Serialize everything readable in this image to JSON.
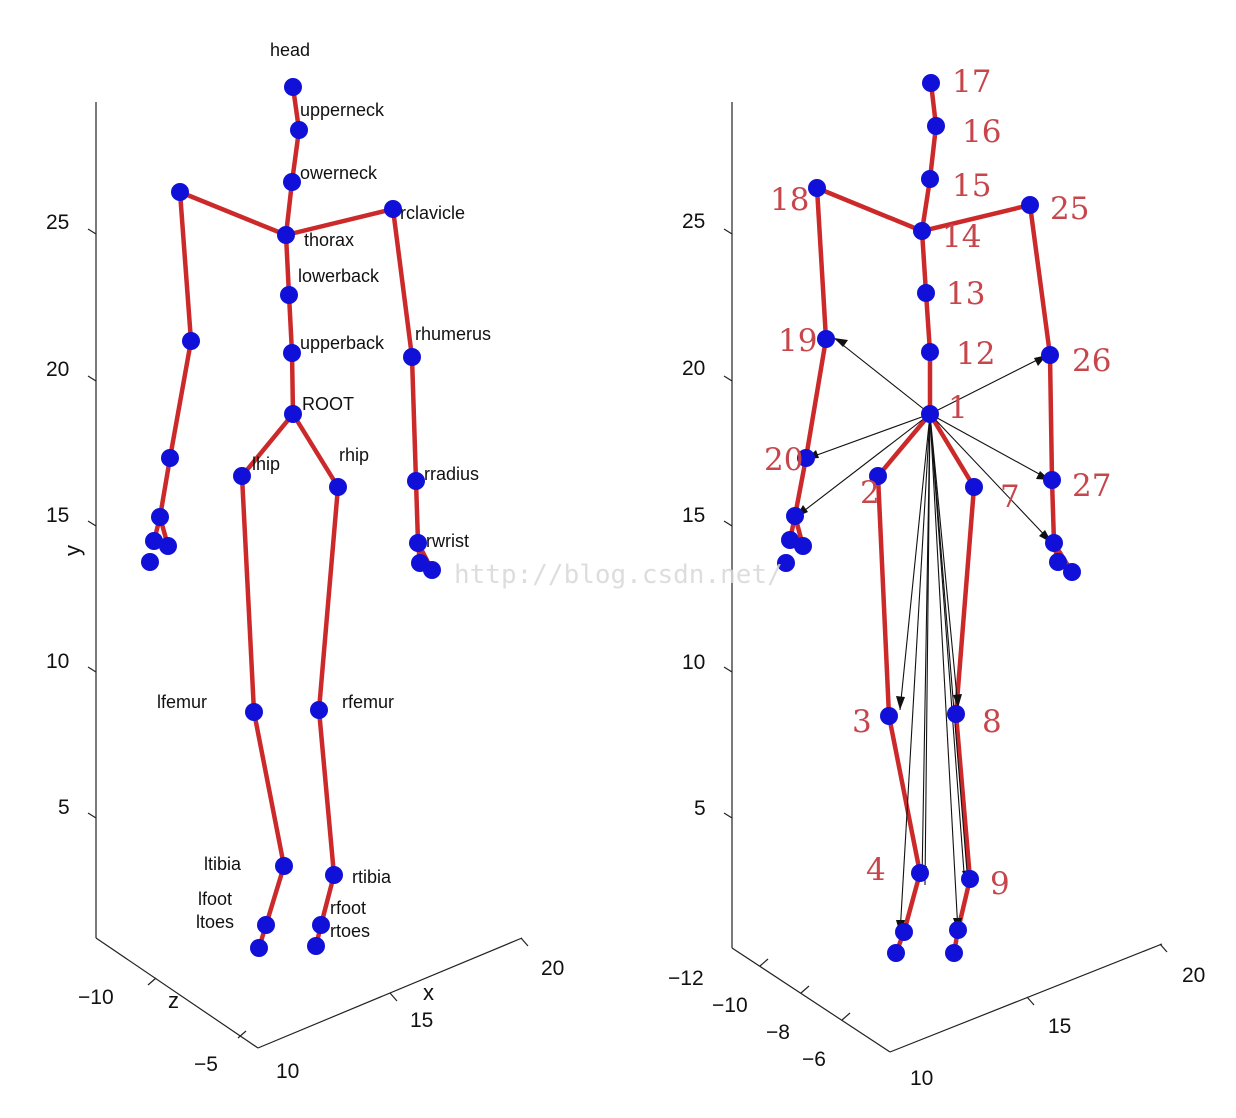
{
  "left": {
    "y_ticks": [
      "25",
      "20",
      "15",
      "10",
      "5"
    ],
    "z_ticks": [
      "−10",
      "−5"
    ],
    "x_ticks": [
      "10",
      "15",
      "20"
    ],
    "axis_y": "y",
    "axis_z": "z",
    "axis_x": "x",
    "labels": {
      "head": "head",
      "upperneck": "upperneck",
      "lowerneck": "owerneck",
      "rclavicle": "rclavicle",
      "thorax": "thorax",
      "lowerback": "lowerback",
      "upperback": "upperback",
      "rhumerus": "rhumerus",
      "root": "ROOT",
      "lhip": "lhip",
      "rhip": "rhip",
      "rradius": "rradius",
      "rwrist": "rwrist",
      "lfemur": "lfemur",
      "rfemur": "rfemur",
      "ltibia": "ltibia",
      "rtibia": "rtibia",
      "lfoot": "lfoot",
      "ltoes": "ltoes",
      "rfoot": "rfoot",
      "rtoes": "rtoes"
    }
  },
  "right": {
    "y_ticks": [
      "25",
      "20",
      "15",
      "10",
      "5"
    ],
    "z_ticks": [
      "−12",
      "−10",
      "−8",
      "−6"
    ],
    "x_ticks": [
      "10",
      "15",
      "20"
    ],
    "numbers": {
      "n17": "17",
      "n16": "16",
      "n15": "15",
      "n18": "18",
      "n14": "14",
      "n25": "25",
      "n13": "13",
      "n19": "19",
      "n12": "12",
      "n26": "26",
      "n1": "1",
      "n20": "20",
      "n2": "2",
      "n7": "7",
      "n27": "27",
      "n3": "3",
      "n8": "8",
      "n4": "4",
      "n9": "9"
    }
  },
  "watermark": "http://blog.csdn.net/",
  "colors": {
    "bone": "#cc2a2a",
    "joint": "#1010d8",
    "number": "#c7464c"
  }
}
